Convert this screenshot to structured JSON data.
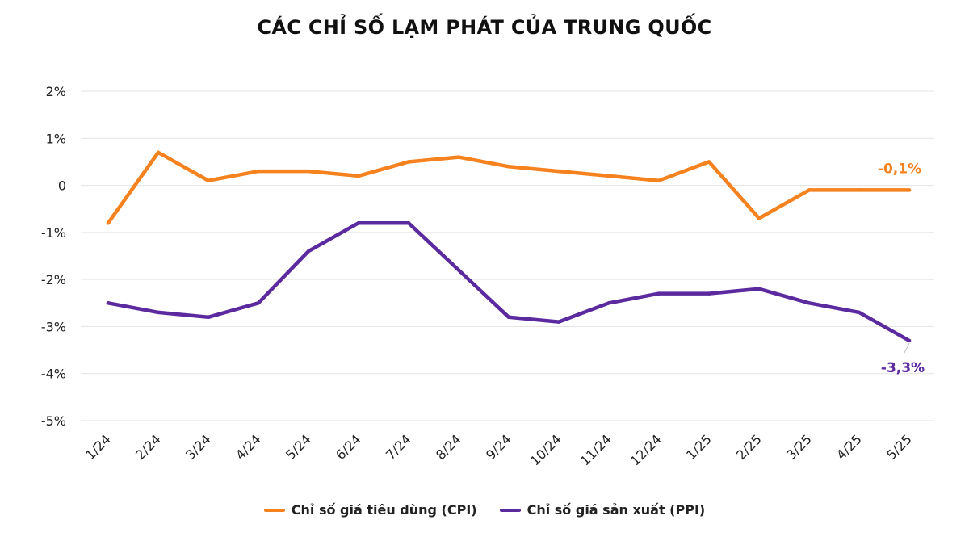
{
  "chart_data": {
    "type": "line",
    "title": "CÁC CHỈ SỐ LẠM PHÁT CỦA TRUNG QUỐC",
    "categories": [
      "1/24",
      "2/24",
      "3/24",
      "4/24",
      "5/24",
      "6/24",
      "7/24",
      "8/24",
      "9/24",
      "10/24",
      "11/24",
      "12/24",
      "1/25",
      "2/25",
      "3/25",
      "4/25",
      "5/25"
    ],
    "ylim": [
      -5,
      2
    ],
    "yticks": [
      2,
      1,
      0,
      -1,
      -2,
      -3,
      -4,
      -5
    ],
    "ytick_labels": [
      "2%",
      "1%",
      "0",
      "-1%",
      "-2%",
      "-3%",
      "-4%",
      "-5%"
    ],
    "grid": true,
    "legend_position": "bottom",
    "series": [
      {
        "name": "Chỉ số giá tiêu dùng (CPI)",
        "color": "#F5821F",
        "values": [
          -0.8,
          0.7,
          0.1,
          0.3,
          0.3,
          0.2,
          0.5,
          0.6,
          0.4,
          0.3,
          0.2,
          0.1,
          0.5,
          -0.7,
          -0.1,
          -0.1,
          -0.1
        ],
        "end_label": "-0,1%"
      },
      {
        "name": "Chỉ số giá sản xuất (PPI)",
        "color": "#5B2A9E",
        "values": [
          -2.5,
          -2.7,
          -2.8,
          -2.5,
          -1.4,
          -0.8,
          -0.8,
          -1.8,
          -2.8,
          -2.9,
          -2.5,
          -2.3,
          -2.3,
          -2.2,
          -2.5,
          -2.7,
          -3.3
        ],
        "end_label": "-3,3%"
      }
    ]
  }
}
